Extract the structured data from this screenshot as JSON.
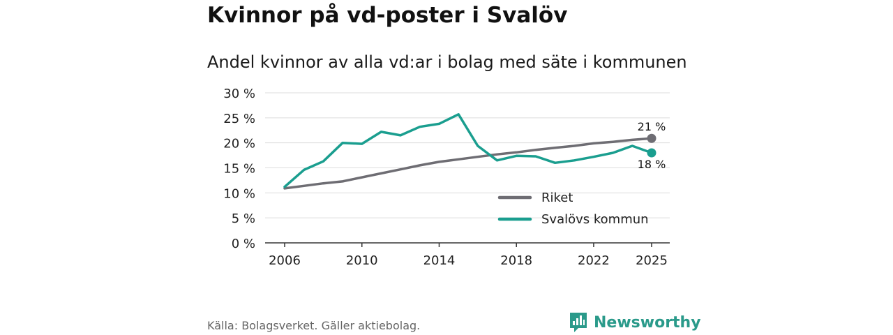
{
  "title": "Kvinnor på vd-poster i Svalöv",
  "subtitle": "Andel kvinnor av alla vd:ar i bolag med säte i kommunen",
  "source": "Källa: Bolagsverket. Gäller aktiebolag.",
  "brand": {
    "name": "Newsworthy",
    "icon": "newsworthy-logo-icon",
    "color": "#2a9a8a"
  },
  "chart_data": {
    "type": "line",
    "title": "Kvinnor på vd-poster i Svalöv",
    "subtitle": "Andel kvinnor av alla vd:ar i bolag med säte i kommunen",
    "xlabel": "",
    "ylabel": "",
    "x": [
      2006,
      2007,
      2008,
      2009,
      2010,
      2011,
      2012,
      2013,
      2014,
      2015,
      2016,
      2017,
      2018,
      2019,
      2020,
      2021,
      2022,
      2023,
      2024,
      2025
    ],
    "xticks": [
      2006,
      2010,
      2014,
      2018,
      2022,
      2025
    ],
    "xlim": [
      2006,
      2025
    ],
    "ylim": [
      0,
      30
    ],
    "yticks": [
      0,
      5,
      10,
      15,
      20,
      25,
      30
    ],
    "ytick_labels": [
      "0 %",
      "5 %",
      "10 %",
      "15 %",
      "20 %",
      "25 %",
      "30 %"
    ],
    "grid": true,
    "legend_position": "bottom-right",
    "series": [
      {
        "name": "Riket",
        "color": "#6e6d73",
        "values": [
          10.9,
          11.4,
          11.9,
          12.3,
          13.1,
          13.9,
          14.7,
          15.5,
          16.2,
          16.7,
          17.2,
          17.7,
          18.1,
          18.6,
          19.0,
          19.4,
          19.9,
          20.2,
          20.6,
          20.9
        ],
        "end_label": "21 %"
      },
      {
        "name": "Svalövs kommun",
        "color": "#1a9e8f",
        "values": [
          11.2,
          14.6,
          16.3,
          20.0,
          19.8,
          22.2,
          21.5,
          23.2,
          23.8,
          25.7,
          19.4,
          16.5,
          17.4,
          17.3,
          16.0,
          16.5,
          17.2,
          18.0,
          19.4,
          18.0
        ],
        "end_label": "18 %"
      }
    ]
  }
}
